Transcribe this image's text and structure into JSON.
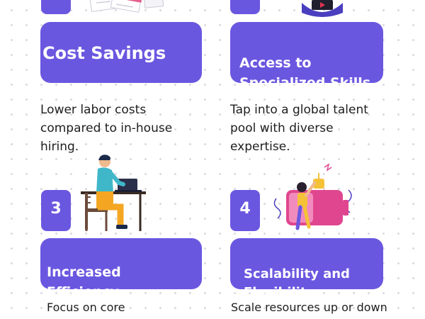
{
  "accent_color": "#6a57e0",
  "cards": [
    {
      "title": "Cost Savings",
      "description": "Lower labor costs\ncompared to in-house\nhiring.",
      "illustration": "invoice-documents-illustration"
    },
    {
      "title": "Access to\nSpecialized Skills",
      "description": "Tap into a global talent\npool with diverse\nexpertise.",
      "illustration": "person-with-laptop-illustration"
    },
    {
      "number": "3",
      "title": "Increased\nEfficiency",
      "description": "Focus on core",
      "illustration": "person-at-desk-illustration"
    },
    {
      "number": "4",
      "title": "Scalability and\nFlexibility",
      "description": "Scale resources up or down",
      "illustration": "person-charging-battery-illustration"
    }
  ]
}
